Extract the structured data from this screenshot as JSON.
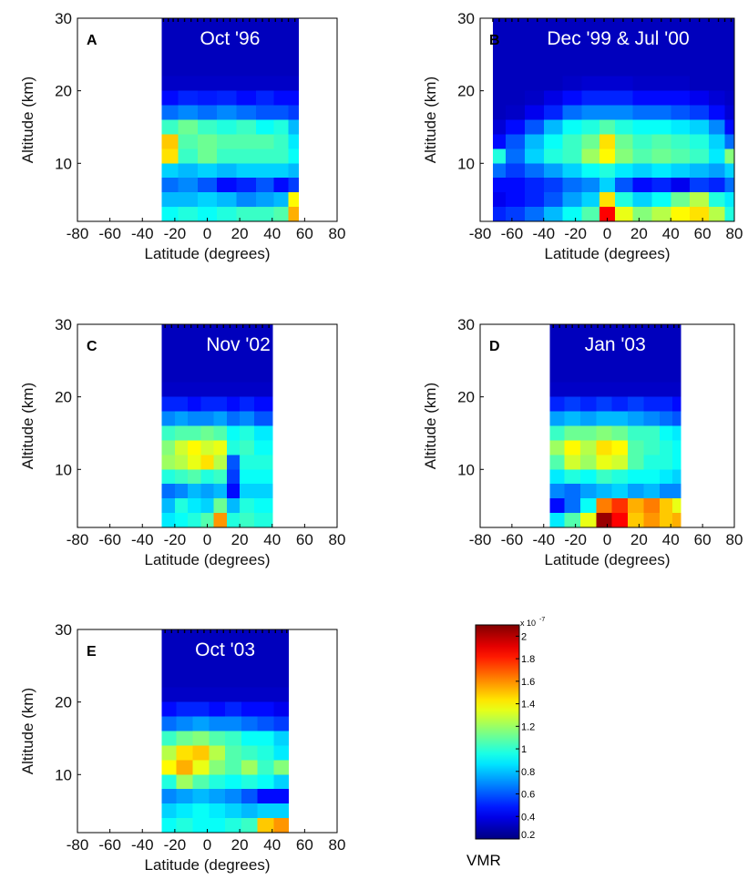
{
  "chart_data": [
    {
      "type": "heatmap",
      "panel": "A",
      "title": "Oct '96",
      "xlabel": "Latitude (degrees)",
      "ylabel": "Altitude (km)",
      "xlim": [
        -80,
        80
      ],
      "ylim": [
        2,
        30
      ],
      "xticks": [
        "-80",
        "-60",
        "-40",
        "-20",
        "0",
        "20",
        "40",
        "60",
        "80"
      ],
      "yticks": [
        "10",
        "20",
        "30"
      ],
      "lat_range": [
        -28,
        56
      ],
      "altitudes": [
        29,
        27,
        25,
        23,
        21,
        19,
        17,
        15,
        13,
        11,
        9,
        7,
        5,
        3
      ],
      "lats": [
        -24,
        -12,
        0,
        12,
        24,
        36,
        46,
        54
      ],
      "values": [
        [
          0.2,
          0.2,
          0.2,
          0.2,
          0.2,
          0.2,
          0.2,
          0.2
        ],
        [
          0.2,
          0.2,
          0.2,
          0.2,
          0.2,
          0.2,
          0.2,
          0.2
        ],
        [
          0.2,
          0.2,
          0.2,
          0.2,
          0.2,
          0.2,
          0.2,
          0.2
        ],
        [
          0.2,
          0.2,
          0.2,
          0.2,
          0.2,
          0.2,
          0.2,
          0.2
        ],
        [
          0.22,
          0.22,
          0.22,
          0.22,
          0.22,
          0.22,
          0.22,
          0.22
        ],
        [
          0.35,
          0.4,
          0.38,
          0.4,
          0.35,
          0.4,
          0.35,
          0.35
        ],
        [
          0.55,
          0.6,
          0.55,
          0.6,
          0.55,
          0.5,
          0.5,
          0.45
        ],
        [
          0.95,
          1.05,
          0.95,
          0.9,
          0.95,
          0.85,
          0.9,
          0.7
        ],
        [
          1.45,
          1.0,
          1.05,
          1.0,
          1.0,
          1.0,
          0.95,
          0.8
        ],
        [
          1.4,
          0.95,
          1.05,
          0.95,
          0.95,
          0.95,
          0.95,
          0.85
        ],
        [
          0.75,
          0.7,
          0.75,
          0.7,
          0.75,
          0.75,
          0.75,
          0.7
        ],
        [
          0.55,
          0.6,
          0.5,
          0.35,
          0.4,
          0.5,
          0.35,
          0.45
        ],
        [
          0.7,
          0.7,
          0.75,
          0.7,
          0.6,
          0.65,
          0.7,
          1.35
        ],
        [
          0.85,
          0.9,
          0.85,
          0.9,
          0.95,
          0.95,
          1.0,
          1.5
        ]
      ],
      "obs_lats": [
        -27,
        -24,
        -21,
        -18,
        -14,
        -10,
        -6,
        -2,
        2,
        6,
        10,
        14,
        18,
        22,
        26,
        30,
        34,
        38,
        42,
        46,
        50,
        54
      ]
    },
    {
      "type": "heatmap",
      "panel": "B",
      "title": "Dec '99 & Jul '00",
      "xlabel": "Latitude (degrees)",
      "ylabel": "Altitude (km)",
      "xlim": [
        -80,
        80
      ],
      "ylim": [
        2,
        30
      ],
      "xticks": [
        "-80",
        "-60",
        "-40",
        "-20",
        "0",
        "20",
        "40",
        "60",
        "80"
      ],
      "yticks": [
        "10",
        "20",
        "30"
      ],
      "lat_range": [
        -72,
        80
      ],
      "altitudes": [
        29,
        27,
        25,
        23,
        21,
        19,
        17,
        15,
        13,
        11,
        9,
        7,
        5,
        3
      ],
      "lats": [
        -70,
        -58,
        -46,
        -34,
        -22,
        -10,
        0,
        10,
        22,
        34,
        46,
        58,
        70,
        78
      ],
      "values": [
        [
          0.2,
          0.2,
          0.2,
          0.2,
          0.2,
          0.2,
          0.2,
          0.2,
          0.2,
          0.2,
          0.2,
          0.2,
          0.2,
          0.2
        ],
        [
          0.2,
          0.2,
          0.2,
          0.2,
          0.2,
          0.2,
          0.2,
          0.2,
          0.2,
          0.2,
          0.2,
          0.2,
          0.2,
          0.2
        ],
        [
          0.2,
          0.2,
          0.2,
          0.2,
          0.2,
          0.2,
          0.2,
          0.2,
          0.2,
          0.2,
          0.2,
          0.2,
          0.2,
          0.2
        ],
        [
          0.2,
          0.2,
          0.2,
          0.2,
          0.2,
          0.2,
          0.2,
          0.2,
          0.2,
          0.2,
          0.2,
          0.2,
          0.2,
          0.2
        ],
        [
          0.2,
          0.2,
          0.2,
          0.2,
          0.22,
          0.24,
          0.24,
          0.24,
          0.22,
          0.22,
          0.22,
          0.2,
          0.2,
          0.2
        ],
        [
          0.2,
          0.2,
          0.22,
          0.28,
          0.35,
          0.4,
          0.4,
          0.4,
          0.35,
          0.35,
          0.35,
          0.3,
          0.25,
          0.22
        ],
        [
          0.2,
          0.22,
          0.3,
          0.4,
          0.55,
          0.6,
          0.6,
          0.6,
          0.55,
          0.55,
          0.5,
          0.45,
          0.35,
          0.25
        ],
        [
          0.25,
          0.35,
          0.5,
          0.7,
          0.85,
          0.9,
          1.0,
          0.9,
          0.85,
          0.85,
          0.8,
          0.75,
          0.6,
          0.35
        ],
        [
          0.35,
          0.5,
          0.7,
          0.85,
          0.95,
          1.05,
          1.4,
          1.05,
          0.95,
          1.0,
          0.95,
          0.9,
          0.75,
          0.55
        ],
        [
          0.9,
          0.55,
          0.75,
          0.9,
          0.95,
          1.15,
          1.35,
          1.1,
          1.0,
          1.05,
          1.0,
          0.95,
          0.8,
          1.1
        ],
        [
          0.55,
          0.45,
          0.55,
          0.65,
          0.75,
          0.85,
          0.9,
          0.8,
          0.75,
          0.8,
          0.75,
          0.7,
          0.65,
          0.75
        ],
        [
          0.35,
          0.35,
          0.4,
          0.45,
          0.55,
          0.6,
          0.75,
          0.5,
          0.35,
          0.4,
          0.3,
          0.45,
          0.4,
          0.55
        ],
        [
          0.3,
          0.35,
          0.4,
          0.5,
          0.65,
          0.75,
          1.4,
          0.9,
          0.75,
          0.85,
          1.05,
          1.2,
          0.9,
          0.8
        ],
        [
          0.4,
          0.45,
          0.55,
          0.7,
          0.85,
          1.0,
          1.85,
          1.3,
          1.1,
          1.2,
          1.35,
          1.4,
          1.2,
          0.9
        ]
      ],
      "obs_lats": [
        -72,
        -68,
        -64,
        -60,
        -56,
        -50,
        -44,
        -38,
        -32,
        -26,
        -20,
        -14,
        -8,
        -2,
        4,
        10,
        16,
        22,
        28,
        34,
        40,
        46,
        52,
        58,
        64,
        70,
        74,
        78
      ]
    },
    {
      "type": "heatmap",
      "panel": "C",
      "title": "Nov '02",
      "xlabel": "Latitude (degrees)",
      "ylabel": "Altitude (km)",
      "xlim": [
        -80,
        80
      ],
      "ylim": [
        2,
        30
      ],
      "xticks": [
        "-80",
        "-60",
        "-40",
        "-20",
        "0",
        "20",
        "40",
        "60",
        "80"
      ],
      "yticks": [
        "10",
        "20",
        "30"
      ],
      "lat_range": [
        -28,
        40
      ],
      "altitudes": [
        29,
        27,
        25,
        23,
        21,
        19,
        17,
        15,
        13,
        11,
        9,
        7,
        5,
        3
      ],
      "lats": [
        -24,
        -16,
        -8,
        0,
        8,
        16,
        24,
        34
      ],
      "values": [
        [
          0.2,
          0.2,
          0.2,
          0.2,
          0.2,
          0.2,
          0.2,
          0.2
        ],
        [
          0.2,
          0.2,
          0.2,
          0.2,
          0.2,
          0.2,
          0.2,
          0.2
        ],
        [
          0.2,
          0.2,
          0.2,
          0.2,
          0.2,
          0.2,
          0.2,
          0.2
        ],
        [
          0.2,
          0.2,
          0.2,
          0.2,
          0.2,
          0.2,
          0.2,
          0.2
        ],
        [
          0.22,
          0.22,
          0.22,
          0.22,
          0.22,
          0.22,
          0.22,
          0.22
        ],
        [
          0.4,
          0.4,
          0.35,
          0.4,
          0.4,
          0.35,
          0.4,
          0.35
        ],
        [
          0.6,
          0.65,
          0.6,
          0.6,
          0.65,
          0.55,
          0.6,
          0.5
        ],
        [
          0.95,
          1.0,
          1.0,
          1.05,
          1.0,
          0.85,
          0.9,
          0.8
        ],
        [
          1.1,
          1.25,
          1.35,
          1.25,
          1.3,
          0.9,
          0.95,
          0.85
        ],
        [
          1.15,
          1.2,
          1.3,
          1.4,
          1.2,
          0.5,
          0.9,
          0.9
        ],
        [
          0.9,
          0.95,
          1.0,
          0.9,
          0.95,
          0.45,
          0.85,
          0.85
        ],
        [
          0.55,
          0.6,
          0.7,
          0.65,
          0.7,
          0.35,
          0.75,
          0.75
        ],
        [
          0.7,
          0.9,
          0.8,
          0.75,
          1.05,
          0.7,
          0.9,
          0.85
        ],
        [
          0.8,
          0.85,
          0.9,
          1.0,
          1.55,
          0.9,
          0.95,
          0.9
        ]
      ],
      "obs_lats": [
        -26,
        -22,
        -18,
        -14,
        -10,
        -6,
        -2,
        2,
        6,
        10,
        14,
        18,
        22,
        26,
        30,
        34,
        38
      ]
    },
    {
      "type": "heatmap",
      "panel": "D",
      "title": "Jan '03",
      "xlabel": "Latitude (degrees)",
      "ylabel": "Altitude (km)",
      "xlim": [
        -80,
        80
      ],
      "ylim": [
        2,
        30
      ],
      "xticks": [
        "-80",
        "-60",
        "-40",
        "-20",
        "0",
        "20",
        "40",
        "60",
        "80"
      ],
      "yticks": [
        "10",
        "20",
        "30"
      ],
      "lat_range": [
        -36,
        46
      ],
      "altitudes": [
        29,
        27,
        25,
        23,
        21,
        19,
        17,
        15,
        13,
        11,
        9,
        7,
        5,
        3
      ],
      "lats": [
        -32,
        -22,
        -12,
        -2,
        8,
        18,
        28,
        38,
        44
      ],
      "values": [
        [
          0.2,
          0.2,
          0.2,
          0.2,
          0.2,
          0.2,
          0.2,
          0.2,
          0.2
        ],
        [
          0.2,
          0.2,
          0.2,
          0.2,
          0.2,
          0.2,
          0.2,
          0.2,
          0.2
        ],
        [
          0.2,
          0.2,
          0.2,
          0.2,
          0.2,
          0.2,
          0.2,
          0.2,
          0.2
        ],
        [
          0.2,
          0.2,
          0.2,
          0.2,
          0.2,
          0.2,
          0.2,
          0.2,
          0.2
        ],
        [
          0.22,
          0.22,
          0.22,
          0.22,
          0.22,
          0.22,
          0.22,
          0.22,
          0.22
        ],
        [
          0.4,
          0.45,
          0.4,
          0.45,
          0.4,
          0.45,
          0.4,
          0.4,
          0.35
        ],
        [
          0.65,
          0.7,
          0.65,
          0.7,
          0.7,
          0.65,
          0.6,
          0.55,
          0.5
        ],
        [
          0.95,
          1.05,
          1.05,
          1.1,
          1.05,
          0.95,
          0.95,
          0.85,
          0.8
        ],
        [
          1.15,
          1.35,
          1.2,
          1.4,
          1.35,
          1.0,
          0.95,
          0.9,
          0.85
        ],
        [
          1.0,
          1.25,
          1.15,
          1.3,
          1.25,
          1.0,
          0.9,
          0.9,
          0.85
        ],
        [
          0.8,
          0.9,
          0.85,
          0.95,
          0.9,
          0.85,
          0.85,
          0.8,
          0.75
        ],
        [
          0.6,
          0.55,
          0.65,
          0.7,
          0.75,
          0.65,
          0.7,
          0.6,
          0.6
        ],
        [
          0.35,
          0.55,
          0.85,
          1.6,
          1.75,
          1.5,
          1.6,
          1.45,
          1.3
        ],
        [
          0.8,
          1.0,
          1.3,
          2.05,
          1.85,
          1.45,
          1.55,
          1.45,
          1.5
        ]
      ],
      "obs_lats": [
        -34,
        -30,
        -26,
        -22,
        -18,
        -14,
        -10,
        -6,
        -2,
        2,
        6,
        10,
        14,
        18,
        22,
        26,
        30,
        34,
        38,
        42,
        45
      ]
    },
    {
      "type": "heatmap",
      "panel": "E",
      "title": "Oct '03",
      "xlabel": "Latitude (degrees)",
      "ylabel": "Altitude (km)",
      "xlim": [
        -80,
        80
      ],
      "ylim": [
        2,
        30
      ],
      "xticks": [
        "-80",
        "-60",
        "-40",
        "-20",
        "0",
        "20",
        "40",
        "60",
        "80"
      ],
      "yticks": [
        "10",
        "20",
        "30"
      ],
      "lat_range": [
        -28,
        50
      ],
      "altitudes": [
        29,
        27,
        25,
        23,
        21,
        19,
        17,
        15,
        13,
        11,
        9,
        7,
        5,
        3
      ],
      "lats": [
        -24,
        -14,
        -4,
        6,
        16,
        26,
        36,
        46
      ],
      "values": [
        [
          0.2,
          0.2,
          0.2,
          0.2,
          0.2,
          0.2,
          0.2,
          0.2
        ],
        [
          0.2,
          0.2,
          0.2,
          0.2,
          0.2,
          0.2,
          0.2,
          0.2
        ],
        [
          0.2,
          0.2,
          0.2,
          0.2,
          0.2,
          0.2,
          0.2,
          0.2
        ],
        [
          0.2,
          0.2,
          0.2,
          0.2,
          0.2,
          0.2,
          0.2,
          0.2
        ],
        [
          0.22,
          0.22,
          0.22,
          0.22,
          0.22,
          0.22,
          0.22,
          0.22
        ],
        [
          0.35,
          0.4,
          0.4,
          0.35,
          0.4,
          0.35,
          0.35,
          0.3
        ],
        [
          0.55,
          0.6,
          0.65,
          0.6,
          0.6,
          0.55,
          0.5,
          0.45
        ],
        [
          0.95,
          1.05,
          1.1,
          1.0,
          0.95,
          0.85,
          0.85,
          0.75
        ],
        [
          1.2,
          1.4,
          1.45,
          1.2,
          1.0,
          0.95,
          0.9,
          0.8
        ],
        [
          1.35,
          1.5,
          1.3,
          1.1,
          1.0,
          1.15,
          0.95,
          1.1
        ],
        [
          0.9,
          1.15,
          1.0,
          0.9,
          0.85,
          0.9,
          0.85,
          0.75
        ],
        [
          0.6,
          0.65,
          0.7,
          0.65,
          0.6,
          0.5,
          0.35,
          0.35
        ],
        [
          0.75,
          0.8,
          0.85,
          0.8,
          0.75,
          0.7,
          0.75,
          0.75
        ],
        [
          0.85,
          0.9,
          0.85,
          0.85,
          0.9,
          0.95,
          1.45,
          1.55
        ]
      ],
      "obs_lats": [
        -26,
        -22,
        -18,
        -14,
        -10,
        -6,
        -2,
        2,
        6,
        10,
        14,
        18,
        22,
        26,
        30,
        34,
        38,
        42,
        46,
        49
      ]
    }
  ],
  "colorbar": {
    "label": "VMR",
    "exponent": "x 10",
    "exponent_power": "-7",
    "min": 0.2,
    "max": 2.1,
    "ticks": [
      "0.2",
      "0.4",
      "0.6",
      "0.8",
      "1",
      "1.2",
      "1.4",
      "1.6",
      "1.8",
      "2"
    ],
    "tick_values": [
      0.2,
      0.4,
      0.6,
      0.8,
      1.0,
      1.2,
      1.4,
      1.6,
      1.8,
      2.0
    ],
    "colormap": "jet"
  },
  "colors": {
    "background_fill": "#00008f",
    "frame": "#000000",
    "title_text": "#ffffff"
  }
}
